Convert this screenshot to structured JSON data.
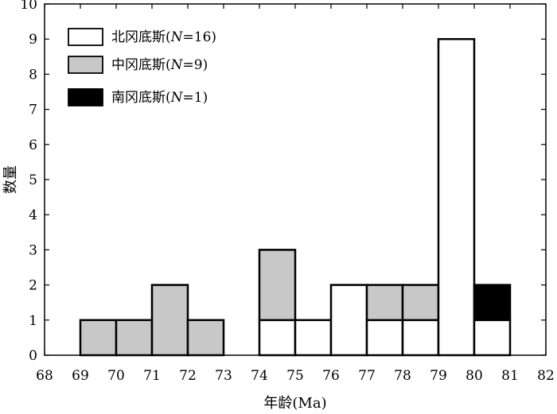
{
  "chart_data": {
    "type": "bar",
    "stacked": true,
    "xlabel": "年龄(Ma)",
    "ylabel": "数量",
    "xlim": [
      68,
      82
    ],
    "ylim": [
      0,
      10
    ],
    "xticks": [
      "68",
      "69",
      "70",
      "71",
      "72",
      "73",
      "74",
      "75",
      "76",
      "77",
      "78",
      "79",
      "80",
      "81",
      "82"
    ],
    "yticks": [
      "0",
      "1",
      "2",
      "3",
      "4",
      "5",
      "6",
      "7",
      "8",
      "9",
      "10"
    ],
    "bin_width": 1,
    "bins": [
      69,
      70,
      71,
      72,
      74,
      75,
      76,
      77,
      78,
      79,
      80
    ],
    "series": [
      {
        "name": "北冈底斯(N=16)",
        "legend_prefix": "北冈底斯(",
        "legend_italic": "N",
        "legend_suffix": "=16)",
        "color": "#ffffff",
        "values": [
          0,
          0,
          0,
          0,
          1,
          1,
          2,
          1,
          1,
          9,
          1
        ]
      },
      {
        "name": "中冈底斯(N=9)",
        "legend_prefix": "中冈底斯(",
        "legend_italic": "N",
        "legend_suffix": "=9)",
        "color": "#c8c8c8",
        "values": [
          1,
          1,
          2,
          1,
          2,
          0,
          0,
          1,
          1,
          0,
          0
        ]
      },
      {
        "name": "南冈底斯(N=1)",
        "legend_prefix": "南冈底斯(",
        "legend_italic": "N",
        "legend_suffix": "=1)",
        "color": "#000000",
        "values": [
          0,
          0,
          0,
          0,
          0,
          0,
          0,
          0,
          0,
          0,
          1
        ]
      }
    ],
    "legend_position": "top-left",
    "grid": false
  }
}
